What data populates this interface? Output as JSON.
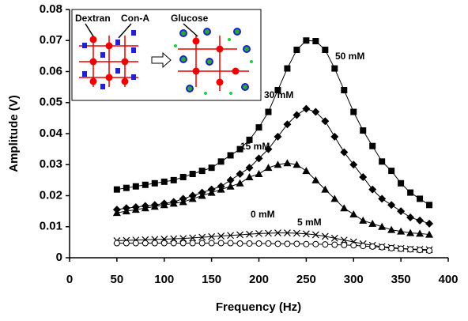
{
  "chart_data": {
    "type": "line",
    "x_label": "Frequency (Hz)",
    "y_label": "Amplitude (V)",
    "xlim": [
      0,
      400
    ],
    "xticks": [
      0,
      50,
      100,
      150,
      200,
      250,
      300,
      350,
      400
    ],
    "ylim": [
      0,
      0.08
    ],
    "yticks": [
      0,
      0.01,
      0.02,
      0.03,
      0.04,
      0.05,
      0.06,
      0.07,
      0.08
    ],
    "grid": false,
    "x": [
      50,
      60,
      70,
      80,
      90,
      100,
      110,
      120,
      130,
      140,
      150,
      160,
      170,
      180,
      190,
      200,
      210,
      220,
      230,
      240,
      250,
      260,
      270,
      280,
      290,
      300,
      310,
      320,
      330,
      340,
      350,
      360,
      370,
      380
    ],
    "series": [
      {
        "name": "50 mM",
        "color": "#000",
        "marker": "square",
        "values": [
          0.022,
          0.0225,
          0.023,
          0.0235,
          0.024,
          0.0245,
          0.025,
          0.026,
          0.027,
          0.028,
          0.029,
          0.031,
          0.033,
          0.035,
          0.038,
          0.042,
          0.047,
          0.054,
          0.061,
          0.067,
          0.07,
          0.0698,
          0.067,
          0.061,
          0.054,
          0.047,
          0.041,
          0.036,
          0.031,
          0.028,
          0.024,
          0.021,
          0.019,
          0.017
        ]
      },
      {
        "name": "30 mM",
        "color": "#000",
        "marker": "diamond",
        "values": [
          0.0155,
          0.016,
          0.0163,
          0.0167,
          0.017,
          0.0175,
          0.018,
          0.019,
          0.02,
          0.021,
          0.022,
          0.023,
          0.025,
          0.027,
          0.029,
          0.032,
          0.035,
          0.039,
          0.043,
          0.046,
          0.048,
          0.047,
          0.044,
          0.039,
          0.034,
          0.03,
          0.026,
          0.022,
          0.019,
          0.017,
          0.015,
          0.013,
          0.012,
          0.011
        ]
      },
      {
        "name": "15 mM",
        "color": "#000",
        "marker": "triangle",
        "values": [
          0.0145,
          0.015,
          0.0155,
          0.016,
          0.0165,
          0.017,
          0.0175,
          0.018,
          0.019,
          0.02,
          0.021,
          0.022,
          0.023,
          0.024,
          0.026,
          0.027,
          0.029,
          0.03,
          0.0305,
          0.03,
          0.028,
          0.025,
          0.022,
          0.019,
          0.016,
          0.014,
          0.012,
          0.011,
          0.01,
          0.009,
          0.0085,
          0.008,
          0.0078,
          0.0075
        ]
      },
      {
        "name": "5 mM",
        "color": "#000",
        "marker": "cross",
        "values": [
          0.0055,
          0.0056,
          0.0057,
          0.0058,
          0.0059,
          0.006,
          0.0061,
          0.0062,
          0.0064,
          0.0066,
          0.0068,
          0.007,
          0.0072,
          0.0074,
          0.0076,
          0.0078,
          0.0079,
          0.008,
          0.008,
          0.0079,
          0.0077,
          0.0074,
          0.0069,
          0.0063,
          0.0057,
          0.0051,
          0.0045,
          0.004,
          0.0036,
          0.0033,
          0.003,
          0.0028,
          0.0027,
          0.0026
        ]
      },
      {
        "name": "0 mM",
        "color": "#000",
        "marker": "circle",
        "values": [
          0.0047,
          0.0047,
          0.0047,
          0.0047,
          0.0047,
          0.0047,
          0.0047,
          0.0047,
          0.0047,
          0.0047,
          0.0047,
          0.0047,
          0.0047,
          0.0046,
          0.0046,
          0.0046,
          0.0046,
          0.0045,
          0.0045,
          0.0045,
          0.0044,
          0.0044,
          0.0043,
          0.0042,
          0.0041,
          0.004,
          0.0038,
          0.0036,
          0.0034,
          0.0031,
          0.0029,
          0.0027,
          0.0025,
          0.0023
        ]
      }
    ],
    "inset": {
      "labels": [
        "Dextran",
        "Con-A",
        "Glucose"
      ]
    }
  }
}
